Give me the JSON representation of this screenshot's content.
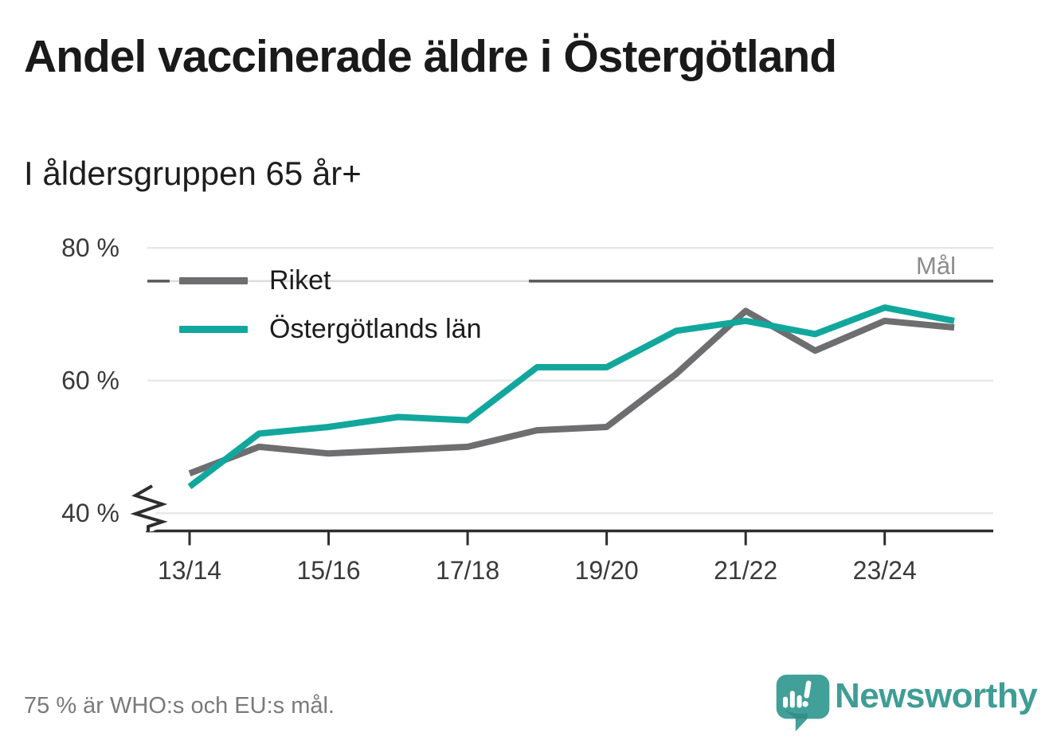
{
  "header": {
    "title": "Andel vaccinerade äldre i Östergötland",
    "subtitle": "I åldersgruppen 65 år+"
  },
  "chart_data": {
    "type": "line",
    "title": "Andel vaccinerade äldre i Östergötland",
    "subtitle": "I åldersgruppen 65 år+",
    "x_seasons": [
      "13/14",
      "14/15",
      "15/16",
      "16/17",
      "17/18",
      "18/19",
      "19/20",
      "20/21",
      "21/22",
      "22/23",
      "23/24",
      "24/25"
    ],
    "x_tick_labels": [
      "13/14",
      "15/16",
      "17/18",
      "19/20",
      "21/22",
      "23/24"
    ],
    "y_ticks": [
      40,
      60,
      80
    ],
    "y_tick_suffix": " %",
    "ylim": [
      37,
      82
    ],
    "y_axis_break": true,
    "grid": "horizontal",
    "legend_position": "inside-top-left",
    "goal_line": {
      "value": 75,
      "label": "Mål"
    },
    "series": [
      {
        "name": "Riket",
        "color": "#6e6e71",
        "values": [
          46,
          50,
          49,
          49.5,
          50,
          52.5,
          53,
          61,
          70.5,
          64.5,
          69,
          68
        ]
      },
      {
        "name": "Östergötlands län",
        "color": "#12a79d",
        "values": [
          44,
          52,
          53,
          54.5,
          54,
          62,
          62,
          67.5,
          69,
          67,
          71,
          69
        ]
      }
    ],
    "colors": {
      "grid": "#e8e8e8",
      "axis": "#2e2e2e",
      "goal_dark": "#58585b",
      "goal_light": "#dcdcdc",
      "tick_text": "#3a3a3a",
      "goal_text": "#8c8c8c"
    }
  },
  "footer": {
    "note": "75 % är WHO:s och EU:s mål.",
    "brand": "Newsworthy"
  },
  "colors": {
    "brand_teal": "#3f9d95",
    "background": "#ffffff"
  }
}
